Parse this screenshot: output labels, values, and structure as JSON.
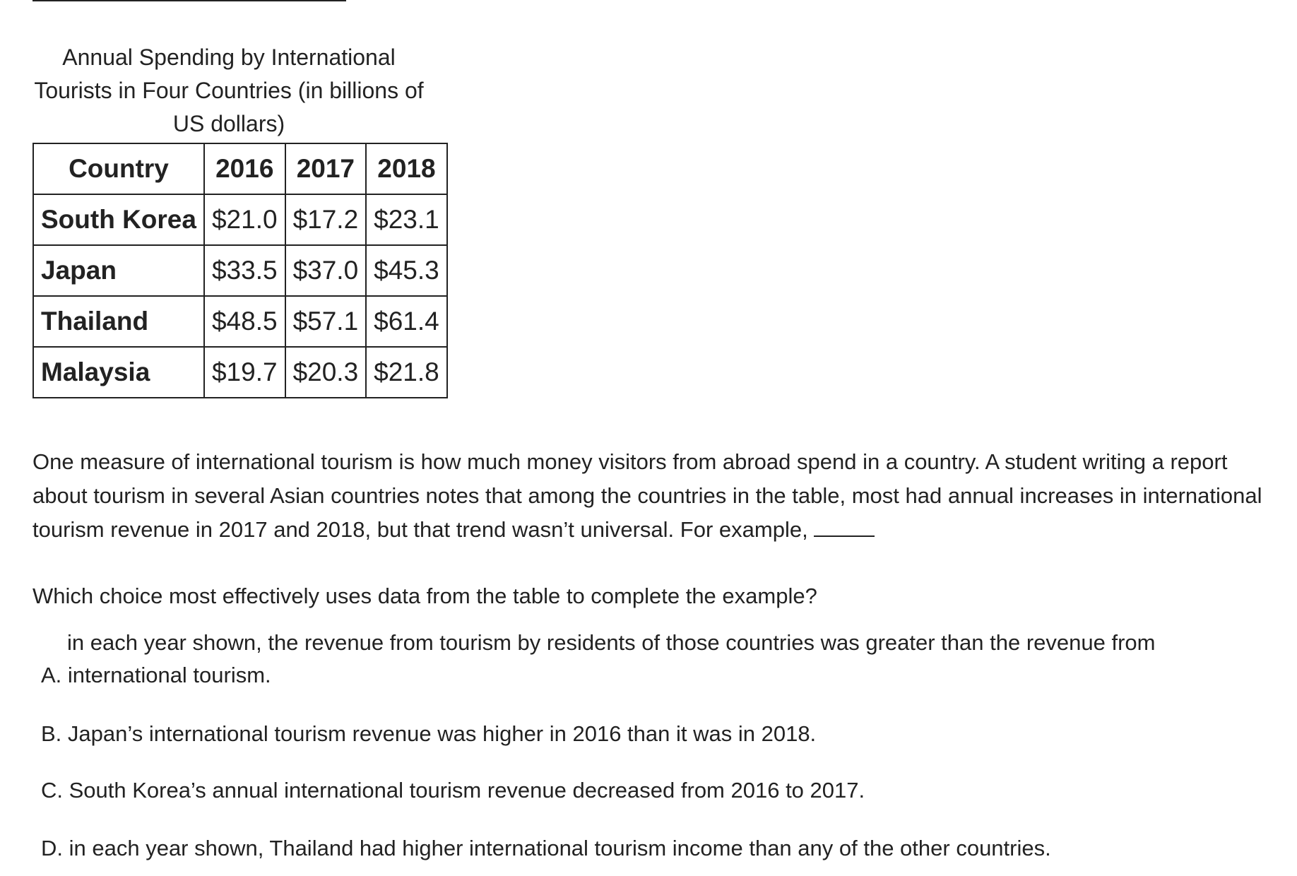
{
  "table": {
    "caption": "Annual Spending by International Tourists in Four Countries (in billions of US dollars)",
    "caption_lines": [
      "Annual Spending by International",
      "Tourists in Four Countries (in billions of",
      "US dollars)"
    ],
    "headers": [
      "Country",
      "2016",
      "2017",
      "2018"
    ],
    "rows": [
      {
        "country": "South Korea",
        "values": [
          "$21.0",
          "$17.2",
          "$23.1"
        ]
      },
      {
        "country": "Japan",
        "values": [
          "$33.5",
          "$37.0",
          "$45.3"
        ]
      },
      {
        "country": "Thailand",
        "values": [
          "$48.5",
          "$57.1",
          "$61.4"
        ]
      },
      {
        "country": "Malaysia",
        "values": [
          "$19.7",
          "$20.3",
          "$21.8"
        ]
      }
    ]
  },
  "passage": {
    "text": "One measure of international tourism is how much money visitors from abroad spend in a country. A student writing a report about tourism in several Asian countries notes that among the countries in the table, most had annual increases in international tourism revenue in 2017 and 2018, but that trend wasn’t universal. For example,"
  },
  "question": {
    "text": "Which choice most effectively uses data from the table to complete the example?"
  },
  "choices": [
    {
      "letter": "A.",
      "text_line1": "in each year shown, the revenue from tourism by residents of those countries was greater than the revenue from",
      "text_line2": "international tourism."
    },
    {
      "letter": "B.",
      "text": "Japan’s international tourism revenue was higher in 2016 than it was in 2018."
    },
    {
      "letter": "C.",
      "text": "South Korea’s annual international tourism revenue decreased from 2016 to 2017."
    },
    {
      "letter": "D.",
      "text": "in each year shown, Thailand had higher international tourism income than any of the other countries."
    }
  ]
}
